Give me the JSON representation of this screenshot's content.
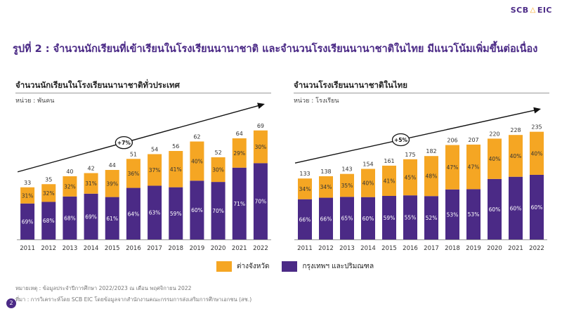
{
  "brand": {
    "logo_left": "SCB",
    "logo_right": "EIC",
    "orange": "#F5A623",
    "purple": "#4B2A86"
  },
  "page_title": "รูปที่ 2 : จำนวนนักเรียนที่เข้าเรียนในโรงเรียนนานาชาติ และจำนวนโรงเรียนนานาชาติในไทย มีแนวโน้มเพิ่มขึ้นต่อเนื่อง",
  "legend": {
    "provinces": "ต่างจังหวัด",
    "bangkok": "กรุงเทพฯ และปริมณฑล"
  },
  "notes": {
    "remark": "หมายเหตุ : ข้อมูลประจำปีการศึกษา 2022/2023 ณ เดือน พฤศจิกายน 2022",
    "source": "ที่มา : การวิเคราะห์โดย SCB EIC โดยข้อมูลจากสำนักงานคณะกรรมการส่งเสริมการศึกษาเอกชน (สช.)"
  },
  "page_number": "2",
  "chart_data": [
    {
      "type": "bar",
      "stacked": true,
      "title": "จำนวนนักเรียนในโรงเรียนนานาชาติทั่วประเทศ",
      "unit": "หน่วย : พันคน",
      "trend_label": "+7%",
      "categories": [
        "2011",
        "2012",
        "2013",
        "2014",
        "2015",
        "2016",
        "2017",
        "2018",
        "2019",
        "2020",
        "2021",
        "2022"
      ],
      "totals": [
        33,
        35,
        40,
        42,
        44,
        51,
        54,
        56,
        62,
        52,
        64,
        69
      ],
      "series": [
        {
          "name": "กรุงเทพฯ และปริมณฑล",
          "percent_labels": [
            "69%",
            "68%",
            "68%",
            "69%",
            "61%",
            "64%",
            "63%",
            "59%",
            "60%",
            "70%",
            "71%",
            "70%"
          ]
        },
        {
          "name": "ต่างจังหวัด",
          "percent_labels": [
            "31%",
            "32%",
            "32%",
            "31%",
            "39%",
            "36%",
            "37%",
            "41%",
            "40%",
            "30%",
            "29%",
            "30%"
          ]
        }
      ],
      "ylim": [
        0,
        76
      ]
    },
    {
      "type": "bar",
      "stacked": true,
      "title": "จำนวนโรงเรียนนานาชาติในไทย",
      "unit": "หน่วย : โรงเรียน",
      "trend_label": "+5%",
      "categories": [
        "2011",
        "2012",
        "2013",
        "2014",
        "2015",
        "2016",
        "2017",
        "2018",
        "2019",
        "2020",
        "2021",
        "2022"
      ],
      "totals": [
        133,
        138,
        143,
        154,
        161,
        175,
        182,
        206,
        207,
        220,
        228,
        235
      ],
      "series": [
        {
          "name": "กรุงเทพฯ และปริมณฑล",
          "percent_labels": [
            "66%",
            "66%",
            "65%",
            "60%",
            "59%",
            "55%",
            "52%",
            "53%",
            "53%",
            "60%",
            "60%",
            "60%"
          ]
        },
        {
          "name": "ต่างจังหวัด",
          "percent_labels": [
            "34%",
            "34%",
            "35%",
            "40%",
            "41%",
            "45%",
            "48%",
            "47%",
            "47%",
            "40%",
            "40%",
            "40%"
          ]
        }
      ],
      "ylim": [
        0,
        262
      ]
    }
  ]
}
